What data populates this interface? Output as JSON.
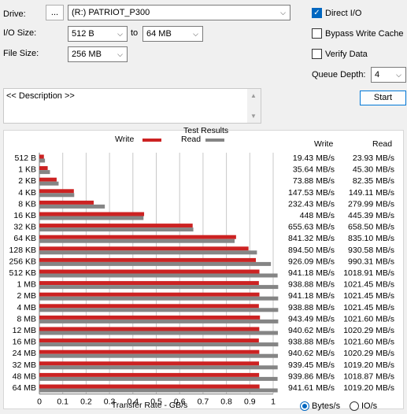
{
  "drive": {
    "label": "Drive:",
    "browse_label": "...",
    "value": "(R:) PATRIOT_P300"
  },
  "io_size": {
    "label": "I/O Size:",
    "from": "512 B",
    "to_label": "to",
    "to": "64 MB"
  },
  "file_size": {
    "label": "File Size:",
    "value": "256 MB"
  },
  "options": {
    "direct_io": {
      "label": "Direct I/O",
      "checked": true
    },
    "bypass_write_cache": {
      "label": "Bypass Write Cache",
      "checked": false
    },
    "verify_data": {
      "label": "Verify Data",
      "checked": false
    }
  },
  "queue_depth": {
    "label": "Queue Depth:",
    "value": "4"
  },
  "start_label": "Start",
  "description_placeholder": "<< Description >>",
  "results": {
    "title": "Test Results",
    "legend_write": "Write",
    "legend_read": "Read",
    "col_write": "Write",
    "col_read": "Read",
    "colors": {
      "write": "#cc2222",
      "read": "#858585"
    }
  },
  "chart_data": {
    "type": "bar",
    "title": "Test Results",
    "xlabel": "Transfer Rate - GB/s",
    "xlim": [
      0,
      1
    ],
    "xticks": [
      "0",
      "0.1",
      "0.2",
      "0.3",
      "0.4",
      "0.5",
      "0.6",
      "0.7",
      "0.8",
      "0.9",
      "1"
    ],
    "categories": [
      "512 B",
      "1 KB",
      "2 KB",
      "4 KB",
      "8 KB",
      "16 KB",
      "32 KB",
      "64 KB",
      "128 KB",
      "256 KB",
      "512 KB",
      "1 MB",
      "2 MB",
      "4 MB",
      "8 MB",
      "12 MB",
      "16 MB",
      "24 MB",
      "32 MB",
      "48 MB",
      "64 MB"
    ],
    "series": [
      {
        "name": "Write",
        "values": [
          19.43,
          35.64,
          73.88,
          147.53,
          232.43,
          448,
          655.63,
          841.32,
          894.5,
          926.09,
          941.18,
          938.88,
          941.18,
          938.88,
          943.49,
          940.62,
          938.88,
          940.62,
          939.45,
          939.86,
          941.61
        ],
        "labels": [
          "19.43 MB/s",
          "35.64 MB/s",
          "73.88 MB/s",
          "147.53 MB/s",
          "232.43 MB/s",
          "448 MB/s",
          "655.63 MB/s",
          "841.32 MB/s",
          "894.50 MB/s",
          "926.09 MB/s",
          "941.18 MB/s",
          "938.88 MB/s",
          "941.18 MB/s",
          "938.88 MB/s",
          "943.49 MB/s",
          "940.62 MB/s",
          "938.88 MB/s",
          "940.62 MB/s",
          "939.45 MB/s",
          "939.86 MB/s",
          "941.61 MB/s"
        ]
      },
      {
        "name": "Read",
        "values": [
          23.93,
          45.3,
          82.35,
          149.11,
          279.99,
          445.39,
          658.5,
          835.1,
          930.58,
          990.31,
          1018.91,
          1021.45,
          1021.45,
          1021.45,
          1021.6,
          1020.29,
          1021.6,
          1020.29,
          1019.2,
          1018.87,
          1019.2
        ],
        "labels": [
          "23.93 MB/s",
          "45.30 MB/s",
          "82.35 MB/s",
          "149.11 MB/s",
          "279.99 MB/s",
          "445.39 MB/s",
          "658.50 MB/s",
          "835.10 MB/s",
          "930.58 MB/s",
          "990.31 MB/s",
          "1018.91 MB/s",
          "1021.45 MB/s",
          "1021.45 MB/s",
          "1021.45 MB/s",
          "1021.60 MB/s",
          "1020.29 MB/s",
          "1021.60 MB/s",
          "1020.29 MB/s",
          "1019.20 MB/s",
          "1018.87 MB/s",
          "1019.20 MB/s"
        ]
      }
    ]
  },
  "units": {
    "bytes_label": "Bytes/s",
    "io_label": "IO/s",
    "selected": "bytes"
  }
}
